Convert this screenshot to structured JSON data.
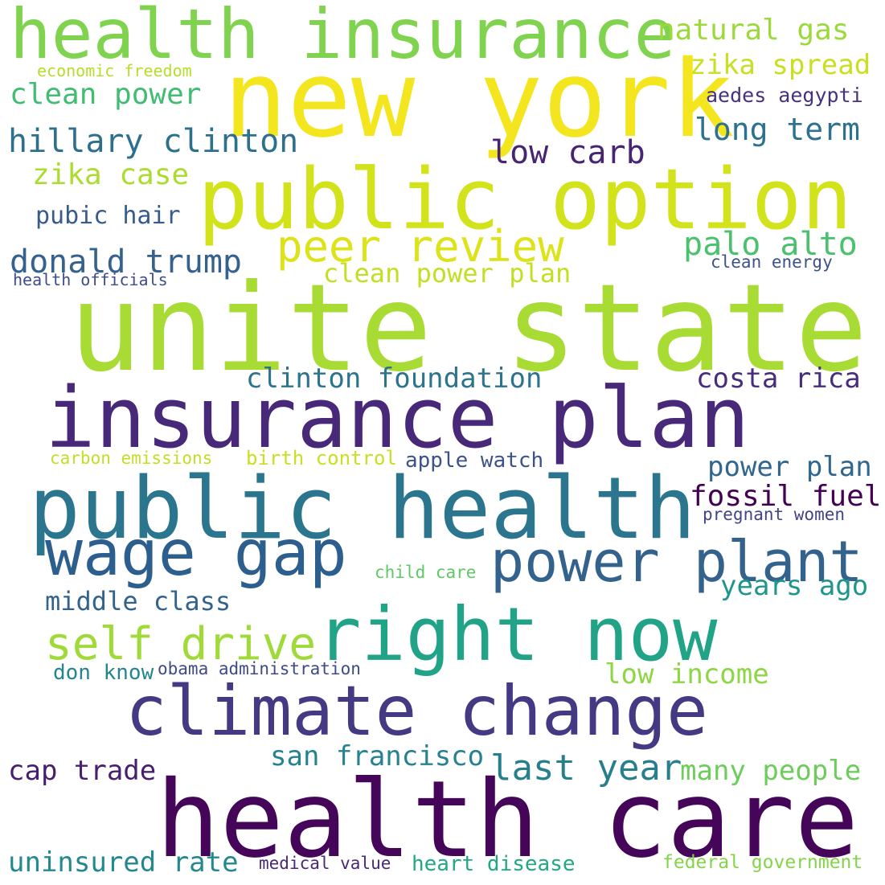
{
  "words": [
    {
      "text": "health insurance",
      "color": "#7fd34e"
    },
    {
      "text": "new york",
      "color": "#f4e61e"
    },
    {
      "text": "natural gas",
      "color": "#9dd93b"
    },
    {
      "text": "zika spread",
      "color": "#c8e020"
    },
    {
      "text": "economic freedom",
      "color": "#b5de2b"
    },
    {
      "text": "clean power",
      "color": "#40bd72"
    },
    {
      "text": "aedes aegypti",
      "color": "#46327e"
    },
    {
      "text": "long term",
      "color": "#2c728e"
    },
    {
      "text": "hillary clinton",
      "color": "#2d708e"
    },
    {
      "text": "low carb",
      "color": "#482475"
    },
    {
      "text": "zika case",
      "color": "#addc30"
    },
    {
      "text": "public option",
      "color": "#d2e21b"
    },
    {
      "text": "pubic hair",
      "color": "#375b8d"
    },
    {
      "text": "peer review",
      "color": "#dde318"
    },
    {
      "text": "palo alto",
      "color": "#4ac16d"
    },
    {
      "text": "donald trump",
      "color": "#34618d"
    },
    {
      "text": "clean energy",
      "color": "#3b528b"
    },
    {
      "text": "health officials",
      "color": "#3e4c8a"
    },
    {
      "text": "clean power plan",
      "color": "#c2df23"
    },
    {
      "text": "unite state",
      "color": "#a8db34"
    },
    {
      "text": "clinton foundation",
      "color": "#2c738e"
    },
    {
      "text": "costa rica",
      "color": "#472d7b"
    },
    {
      "text": "insurance plan",
      "color": "#482979"
    },
    {
      "text": "carbon emissions",
      "color": "#c2df23"
    },
    {
      "text": "birth control",
      "color": "#c8e020"
    },
    {
      "text": "apple watch",
      "color": "#3b528b"
    },
    {
      "text": "power plan",
      "color": "#31678e"
    },
    {
      "text": "fossil fuel",
      "color": "#440154"
    },
    {
      "text": "public health",
      "color": "#2b758e"
    },
    {
      "text": "pregnant women",
      "color": "#414487"
    },
    {
      "text": "wage gap",
      "color": "#2c5f8d"
    },
    {
      "text": "power plant",
      "color": "#33638d"
    },
    {
      "text": "child care",
      "color": "#5ec962"
    },
    {
      "text": "years ago",
      "color": "#1f968b"
    },
    {
      "text": "middle class",
      "color": "#33638d"
    },
    {
      "text": "right now",
      "color": "#20a386"
    },
    {
      "text": "self drive",
      "color": "#a0da39"
    },
    {
      "text": "low income",
      "color": "#8ed645"
    },
    {
      "text": "don know",
      "color": "#25858e"
    },
    {
      "text": "obama administration",
      "color": "#3e4a89"
    },
    {
      "text": "climate change",
      "color": "#443983"
    },
    {
      "text": "san francisco",
      "color": "#26828e"
    },
    {
      "text": "cap trade",
      "color": "#481f70"
    },
    {
      "text": "last year",
      "color": "#277f8e"
    },
    {
      "text": "many people",
      "color": "#6ccd5a"
    },
    {
      "text": "health care",
      "color": "#450559"
    },
    {
      "text": "uninsured rate",
      "color": "#23898e"
    },
    {
      "text": "medical value",
      "color": "#482878"
    },
    {
      "text": "heart disease",
      "color": "#22a884"
    },
    {
      "text": "federal government",
      "color": "#84d44b"
    }
  ]
}
